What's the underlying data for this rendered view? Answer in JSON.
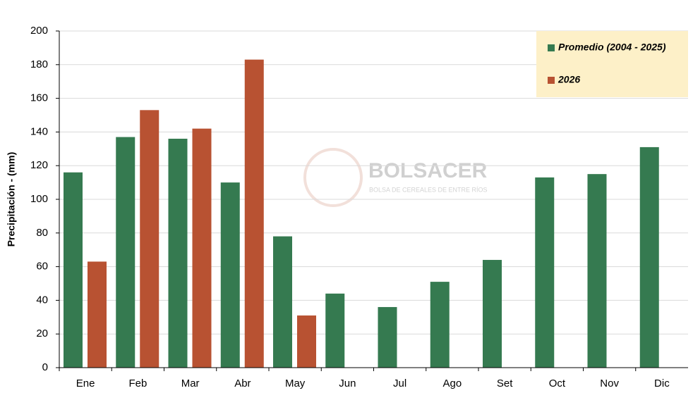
{
  "chart_data": {
    "type": "bar",
    "y_label": "Precipitación - (mm)",
    "categories": [
      "Ene",
      "Feb",
      "Mar",
      "Abr",
      "May",
      "Jun",
      "Jul",
      "Ago",
      "Set",
      "Oct",
      "Nov",
      "Dic"
    ],
    "series": [
      {
        "name": "Promedio (2004 - 2025)",
        "color": "#357a50",
        "values": [
          116,
          137,
          136,
          110,
          78,
          44,
          36,
          51,
          64,
          113,
          115,
          131
        ]
      },
      {
        "name": "2026",
        "color": "#b85232",
        "values": [
          63,
          153,
          142,
          183,
          31,
          null,
          null,
          null,
          null,
          null,
          null,
          null
        ]
      }
    ],
    "ylim": [
      0,
      200
    ],
    "yticks": [
      0,
      20,
      40,
      60,
      80,
      100,
      120,
      140,
      160,
      180,
      200
    ],
    "grid": true,
    "legend": "top-right",
    "watermark": {
      "title": "BOLSACER",
      "subtitle": "BOLSA DE CEREALES DE ENTRE RÍOS"
    }
  }
}
